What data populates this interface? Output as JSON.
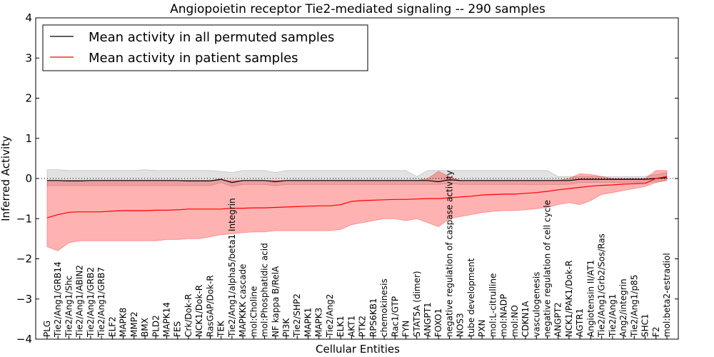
{
  "chart_data": {
    "type": "line",
    "title": "Angiopoietin receptor Tie2-mediated signaling -- 290 samples",
    "xlabel": "Cellular Entities",
    "ylabel": "Inferred Activity",
    "ylim": [
      -4,
      4
    ],
    "yticks": [
      -4,
      -3,
      -2,
      -1,
      0,
      1,
      2,
      3,
      4
    ],
    "ytick_labels": [
      "−4",
      "−3",
      "−2",
      "−1",
      "0",
      "1",
      "2",
      "3",
      "4"
    ],
    "grid": false,
    "legend_position": "top-left",
    "reference_line": 0,
    "categories": [
      "PLG",
      "Tie2/Ang1/GRB14",
      "Tie2/Ang1/Shc",
      "Tie2/Ang1/ABIN2",
      "Tie2/Ang1/GRB2",
      "Tie2/Ang1/GRB7",
      "ELF2",
      "MAPK8",
      "MMP2",
      "BMX",
      "PLD2",
      "MAPK14",
      "FES",
      "Crk/Dok-R",
      "NCK1/Dok-R",
      "RasGAP/Dok-R",
      "TEK",
      "Tie2/Ang1/alpha5/beta1 Integrin",
      "MAPKKK cascade",
      "mol:Choline",
      "mol:Phosphatidic acid",
      "NF kappa B/RelA",
      "PI3K",
      "Tie2/SHP2",
      "MAPK1",
      "MAPK3",
      "Tie2/Ang2",
      "ELK1",
      "AKT1",
      "PTK2",
      "RPS6KB1",
      "chemokinesis",
      "Rac1/GTP",
      "FYN",
      "STAT5A (dimer)",
      "ANGPT1",
      "FOXO1",
      "negative regulation of caspase activity",
      "NOS3",
      "tube development",
      "PXN",
      "mol:L-citrulline",
      "mol:NADP",
      "mol:NO",
      "CDKN1A",
      "vasculogenesis",
      "negative regulation of cell cycle",
      "ANGPT2",
      "NCK1/PAK1/Dok-R",
      "AGTR1",
      "Angiotensin II/AT1",
      "Tie2/Ang1/Grb2/Sos/Ras",
      "Tie2/Ang1",
      "Ang2/integrin",
      "Tie2/Ang1/p85",
      "SHC1",
      "F2",
      "mol:beta2-estradiol"
    ],
    "series": [
      {
        "name": "Mean activity in all permuted samples",
        "color": "#000000",
        "values": [
          -0.05,
          -0.05,
          -0.06,
          -0.06,
          -0.05,
          -0.05,
          -0.05,
          -0.05,
          -0.05,
          -0.05,
          -0.05,
          -0.05,
          -0.05,
          -0.06,
          -0.06,
          -0.06,
          -0.02,
          -0.1,
          -0.05,
          -0.05,
          -0.05,
          -0.08,
          -0.05,
          -0.05,
          -0.05,
          -0.05,
          -0.05,
          -0.05,
          -0.05,
          -0.05,
          -0.05,
          -0.05,
          -0.05,
          -0.05,
          -0.05,
          -0.05,
          -0.08,
          -0.03,
          -0.05,
          -0.05,
          -0.05,
          -0.05,
          -0.05,
          -0.05,
          -0.05,
          -0.05,
          -0.05,
          -0.05,
          -0.05,
          -0.02,
          -0.02,
          -0.02,
          -0.02,
          -0.02,
          -0.02,
          -0.02,
          0.0,
          0.02
        ],
        "band_lower": [
          -0.18,
          -0.18,
          -0.18,
          -0.18,
          -0.18,
          -0.18,
          -0.18,
          -0.18,
          -0.18,
          -0.18,
          -0.18,
          -0.18,
          -0.18,
          -0.18,
          -0.18,
          -0.18,
          -0.1,
          -0.2,
          -0.15,
          -0.15,
          -0.15,
          -0.18,
          -0.15,
          -0.15,
          -0.15,
          -0.15,
          -0.15,
          -0.15,
          -0.15,
          -0.15,
          -0.15,
          -0.15,
          -0.15,
          -0.15,
          -0.15,
          -0.15,
          -0.15,
          -0.12,
          -0.15,
          -0.15,
          -0.15,
          -0.15,
          -0.15,
          -0.15,
          -0.15,
          -0.15,
          -0.15,
          -0.15,
          -0.15,
          -0.1,
          -0.1,
          -0.1,
          -0.1,
          -0.1,
          -0.1,
          -0.1,
          -0.08,
          -0.05
        ],
        "band_upper": [
          0.22,
          0.22,
          0.2,
          0.2,
          0.2,
          0.2,
          0.2,
          0.2,
          0.2,
          0.22,
          0.2,
          0.2,
          0.2,
          0.2,
          0.2,
          0.2,
          0.18,
          0.15,
          0.2,
          0.2,
          0.2,
          0.15,
          0.2,
          0.2,
          0.2,
          0.2,
          0.2,
          0.2,
          0.2,
          0.2,
          0.2,
          0.2,
          0.2,
          0.2,
          0.05,
          0.2,
          0.2,
          0.2,
          0.2,
          0.2,
          0.2,
          0.2,
          0.2,
          0.2,
          0.2,
          0.2,
          0.2,
          0.05,
          0.05,
          0.05,
          0.05,
          0.05,
          0.05,
          0.05,
          0.05,
          0.05,
          0.1,
          0.15
        ]
      },
      {
        "name": "Mean activity in patient samples",
        "color": "#ff0000",
        "values": [
          -0.98,
          -0.9,
          -0.84,
          -0.83,
          -0.83,
          -0.83,
          -0.81,
          -0.8,
          -0.8,
          -0.8,
          -0.79,
          -0.79,
          -0.78,
          -0.76,
          -0.76,
          -0.76,
          -0.76,
          -0.74,
          -0.74,
          -0.73,
          -0.73,
          -0.72,
          -0.71,
          -0.7,
          -0.69,
          -0.68,
          -0.68,
          -0.65,
          -0.57,
          -0.55,
          -0.54,
          -0.53,
          -0.52,
          -0.52,
          -0.51,
          -0.5,
          -0.5,
          -0.48,
          -0.46,
          -0.44,
          -0.41,
          -0.4,
          -0.39,
          -0.39,
          -0.37,
          -0.35,
          -0.32,
          -0.28,
          -0.25,
          -0.22,
          -0.19,
          -0.17,
          -0.16,
          -0.14,
          -0.13,
          -0.12,
          0.0,
          0.05
        ],
        "band_lower": [
          -1.7,
          -1.8,
          -1.6,
          -1.55,
          -1.55,
          -1.55,
          -1.55,
          -1.55,
          -1.55,
          -1.55,
          -1.55,
          -1.52,
          -1.52,
          -1.5,
          -1.5,
          -1.45,
          -1.4,
          -1.38,
          -1.35,
          -1.33,
          -1.33,
          -1.3,
          -1.3,
          -1.3,
          -1.3,
          -1.3,
          -1.3,
          -1.27,
          -1.15,
          -1.1,
          -1.05,
          -1.0,
          -1.0,
          -1.05,
          -1.0,
          -1.1,
          -1.2,
          -1.0,
          -0.95,
          -0.9,
          -0.85,
          -0.82,
          -0.8,
          -0.8,
          -0.78,
          -0.75,
          -0.72,
          -0.65,
          -0.6,
          -0.65,
          -0.55,
          -0.4,
          -0.35,
          -0.3,
          -0.25,
          -0.2,
          -0.1,
          -0.05
        ],
        "band_upper": [
          -0.05,
          -0.05,
          -0.05,
          -0.05,
          -0.05,
          -0.05,
          -0.05,
          -0.05,
          -0.05,
          -0.05,
          -0.05,
          -0.05,
          -0.05,
          -0.05,
          -0.05,
          -0.05,
          -0.05,
          -0.05,
          -0.05,
          -0.05,
          -0.05,
          -0.05,
          -0.05,
          -0.05,
          -0.05,
          -0.05,
          -0.05,
          -0.05,
          -0.05,
          -0.05,
          -0.05,
          -0.05,
          -0.05,
          -0.05,
          -0.05,
          0.0,
          0.18,
          0.05,
          -0.05,
          -0.05,
          -0.05,
          -0.05,
          -0.05,
          -0.05,
          -0.05,
          -0.05,
          -0.05,
          -0.05,
          0.0,
          0.12,
          0.1,
          0.05,
          0.0,
          0.0,
          0.0,
          0.0,
          0.2,
          0.2
        ]
      }
    ]
  },
  "legend": {
    "items": [
      {
        "label": "Mean activity in all permuted samples",
        "color": "#000000"
      },
      {
        "label": "Mean activity in patient samples",
        "color": "#ff0000"
      }
    ]
  }
}
